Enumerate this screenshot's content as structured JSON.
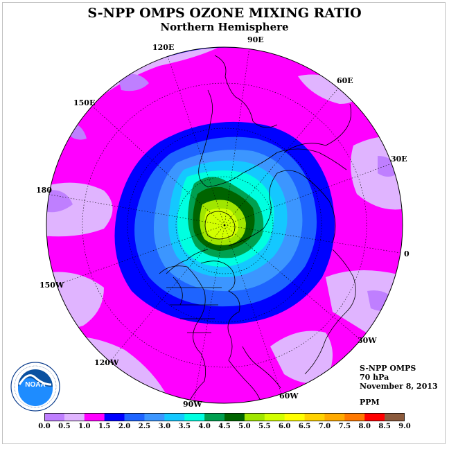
{
  "title": "S-NPP OMPS OZONE MIXING RATIO",
  "subtitle": "Northern Hemisphere",
  "longitude_labels": {
    "e90": "90E",
    "e120": "120E",
    "e60": "60E",
    "e150": "150E",
    "e30": "30E",
    "l180": "180",
    "l0": "0",
    "w150": "150W",
    "w30": "30W",
    "w120": "120W",
    "w60": "60W",
    "w90": "90W"
  },
  "info": {
    "instrument": "S-NPP OMPS",
    "level": "70 hPa",
    "date": "November 8, 2013"
  },
  "units": "PPM",
  "logo": {
    "text": "NOAA",
    "ring_text": "NATIONAL OCEANIC AND ATMOSPHERIC ADMINISTRATION · U.S. DEPARTMENT OF COMMERCE"
  },
  "colorbar": {
    "labels": [
      "0.0",
      "0.5",
      "1.0",
      "1.5",
      "2.0",
      "2.5",
      "3.0",
      "3.5",
      "4.0",
      "4.5",
      "5.0",
      "5.5",
      "6.0",
      "6.5",
      "7.0",
      "7.5",
      "8.0",
      "8.5",
      "9.0"
    ],
    "colors": [
      "#bf7fff",
      "#e0b4ff",
      "#ff00ff",
      "#0000ff",
      "#1e64ff",
      "#3c96ff",
      "#14c8ff",
      "#00ffe0",
      "#00a050",
      "#006400",
      "#a0e600",
      "#d2ff00",
      "#ffff00",
      "#ffd200",
      "#ffaa00",
      "#ff7800",
      "#ff0000",
      "#8b5a3c"
    ]
  },
  "colors": {
    "ocean_background": "#ff00ff",
    "pole_max": "#d2ff00"
  }
}
